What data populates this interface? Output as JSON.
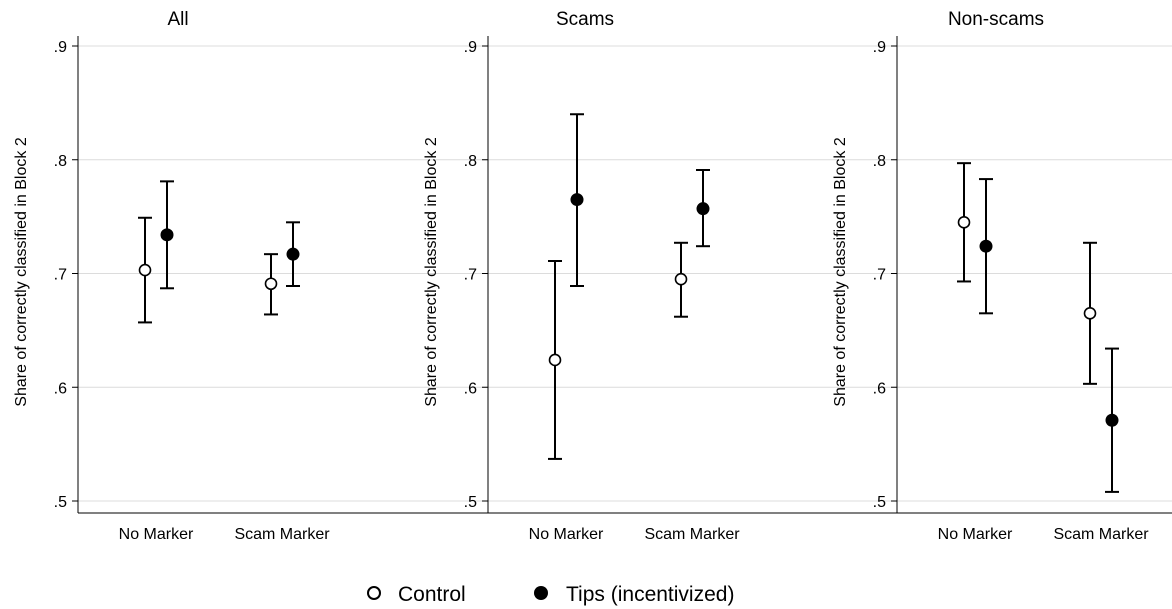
{
  "chart_data": [
    {
      "type": "scatter",
      "title": "All",
      "ylabel": "Share of correctly classified in Block 2",
      "categories": [
        "No Marker",
        "Scam Marker"
      ],
      "ylim": [
        0.5,
        0.9
      ],
      "yticks": [
        ".5",
        ".6",
        ".7",
        ".8",
        ".9"
      ],
      "grid": true,
      "series": [
        {
          "name": "Control",
          "points": [
            {
              "category": "No Marker",
              "y": 0.703,
              "ci": [
                0.657,
                0.749
              ]
            },
            {
              "category": "Scam Marker",
              "y": 0.691,
              "ci": [
                0.664,
                0.717
              ]
            }
          ]
        },
        {
          "name": "Tips (incentivized)",
          "points": [
            {
              "category": "No Marker",
              "y": 0.734,
              "ci": [
                0.687,
                0.781
              ]
            },
            {
              "category": "Scam Marker",
              "y": 0.717,
              "ci": [
                0.689,
                0.745
              ]
            }
          ]
        }
      ]
    },
    {
      "type": "scatter",
      "title": "Scams",
      "ylabel": "Share of correctly classified in Block 2",
      "categories": [
        "No Marker",
        "Scam Marker"
      ],
      "ylim": [
        0.5,
        0.9
      ],
      "yticks": [
        ".5",
        ".6",
        ".7",
        ".8",
        ".9"
      ],
      "grid": true,
      "series": [
        {
          "name": "Control",
          "points": [
            {
              "category": "No Marker",
              "y": 0.624,
              "ci": [
                0.537,
                0.711
              ]
            },
            {
              "category": "Scam Marker",
              "y": 0.695,
              "ci": [
                0.662,
                0.727
              ]
            }
          ]
        },
        {
          "name": "Tips (incentivized)",
          "points": [
            {
              "category": "No Marker",
              "y": 0.765,
              "ci": [
                0.689,
                0.84
              ]
            },
            {
              "category": "Scam Marker",
              "y": 0.757,
              "ci": [
                0.724,
                0.791
              ]
            }
          ]
        }
      ]
    },
    {
      "type": "scatter",
      "title": "Non-scams",
      "ylabel": "Share of correctly classified in Block 2",
      "categories": [
        "No Marker",
        "Scam Marker"
      ],
      "ylim": [
        0.5,
        0.9
      ],
      "yticks": [
        ".5",
        ".6",
        ".7",
        ".8",
        ".9"
      ],
      "grid": true,
      "series": [
        {
          "name": "Control",
          "points": [
            {
              "category": "No Marker",
              "y": 0.745,
              "ci": [
                0.693,
                0.797
              ]
            },
            {
              "category": "Scam Marker",
              "y": 0.665,
              "ci": [
                0.603,
                0.727
              ]
            }
          ]
        },
        {
          "name": "Tips (incentivized)",
          "points": [
            {
              "category": "No Marker",
              "y": 0.724,
              "ci": [
                0.665,
                0.783
              ]
            },
            {
              "category": "Scam Marker",
              "y": 0.571,
              "ci": [
                0.508,
                0.634
              ]
            }
          ]
        }
      ]
    }
  ],
  "legend": {
    "position": "bottom",
    "items": [
      {
        "label": "Control",
        "marker": "hollow-circle"
      },
      {
        "label": "Tips (incentivized)",
        "marker": "filled-circle"
      }
    ]
  },
  "colors": {
    "ink": "#000000",
    "grid": "#dcdcdc",
    "background": "#ffffff"
  }
}
